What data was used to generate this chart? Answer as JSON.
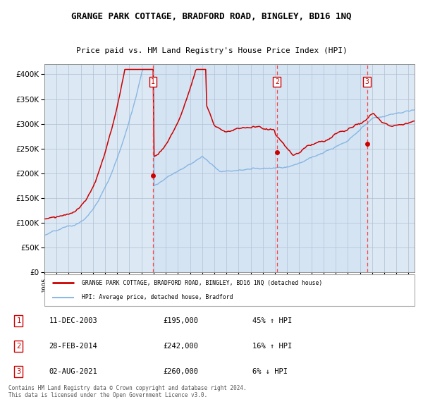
{
  "title": "GRANGE PARK COTTAGE, BRADFORD ROAD, BINGLEY, BD16 1NQ",
  "subtitle": "Price paid vs. HM Land Registry's House Price Index (HPI)",
  "legend_line1": "GRANGE PARK COTTAGE, BRADFORD ROAD, BINGLEY, BD16 1NQ (detached house)",
  "legend_line2": "HPI: Average price, detached house, Bradford",
  "transactions": [
    {
      "num": 1,
      "date": "11-DEC-2003",
      "price": 195000,
      "hpi_relation": "45% ↑ HPI"
    },
    {
      "num": 2,
      "date": "28-FEB-2014",
      "price": 242000,
      "hpi_relation": "16% ↑ HPI"
    },
    {
      "num": 3,
      "date": "02-AUG-2021",
      "price": 260000,
      "hpi_relation": "6% ↓ HPI"
    }
  ],
  "transaction_dates_decimal": [
    2003.94,
    2014.16,
    2021.58
  ],
  "transaction_prices": [
    195000,
    242000,
    260000
  ],
  "footer": "Contains HM Land Registry data © Crown copyright and database right 2024.\nThis data is licensed under the Open Government Licence v3.0.",
  "background_color": "#dce9f5",
  "red_line_color": "#cc0000",
  "blue_line_color": "#7aade0",
  "dot_color": "#cc0000",
  "vline_color": "#ff4444",
  "box_color": "#cc0000",
  "ylim": [
    0,
    420000
  ],
  "yticks": [
    0,
    50000,
    100000,
    150000,
    200000,
    250000,
    300000,
    350000,
    400000
  ],
  "start_year": 1995,
  "end_year": 2025
}
